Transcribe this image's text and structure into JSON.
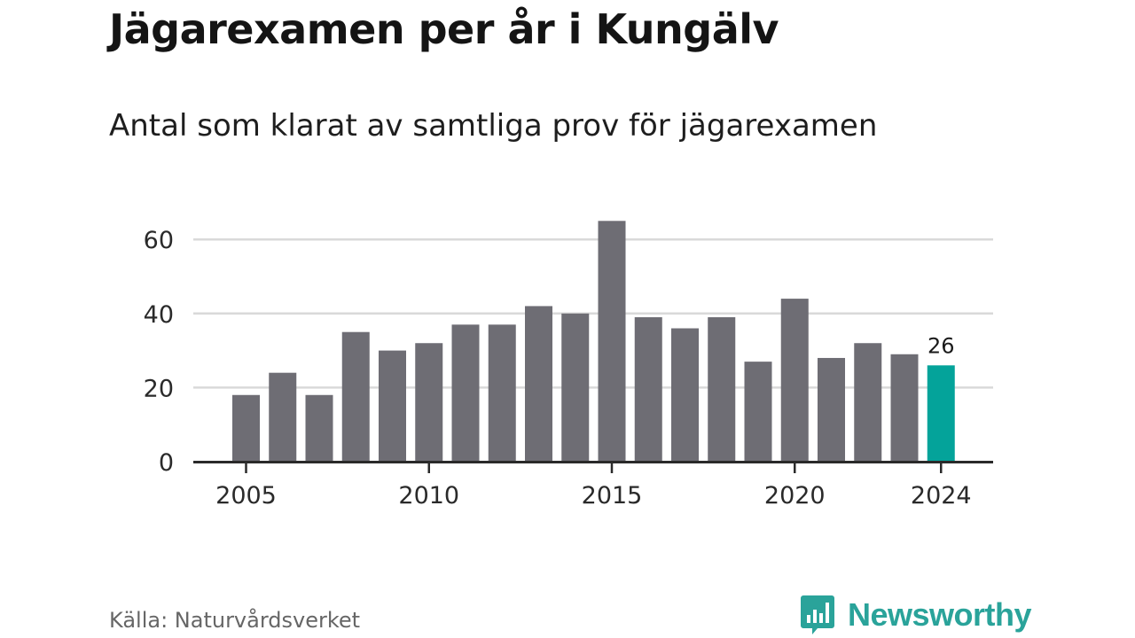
{
  "header": {
    "title": "Jägarexamen per år i Kungälv",
    "subtitle": "Antal som klarat av samtliga prov för jägarexamen"
  },
  "footer": {
    "source": "Källa: Naturvårdsverket",
    "brand": "Newsworthy"
  },
  "colors": {
    "bar": "#6e6d74",
    "highlight": "#04a39a",
    "grid": "#d9d9d9",
    "axis": "#2a2a2a",
    "brand": "#2aa39a"
  },
  "chart_data": {
    "type": "bar",
    "categories": [
      "2005",
      "2006",
      "2007",
      "2008",
      "2009",
      "2010",
      "2011",
      "2012",
      "2013",
      "2014",
      "2015",
      "2016",
      "2017",
      "2018",
      "2019",
      "2020",
      "2021",
      "2022",
      "2023",
      "2024"
    ],
    "values": [
      18,
      24,
      18,
      35,
      30,
      32,
      37,
      37,
      42,
      40,
      65,
      39,
      36,
      39,
      27,
      44,
      28,
      32,
      29,
      26
    ],
    "highlight_category": "2024",
    "highlight_label": "26",
    "x_tick_labels": [
      "2005",
      "2010",
      "2015",
      "2020",
      "2024"
    ],
    "y_ticks": [
      "0",
      "20",
      "40",
      "60"
    ],
    "ylim": [
      0,
      70
    ],
    "grid": true,
    "xlabel": "",
    "ylabel": ""
  }
}
